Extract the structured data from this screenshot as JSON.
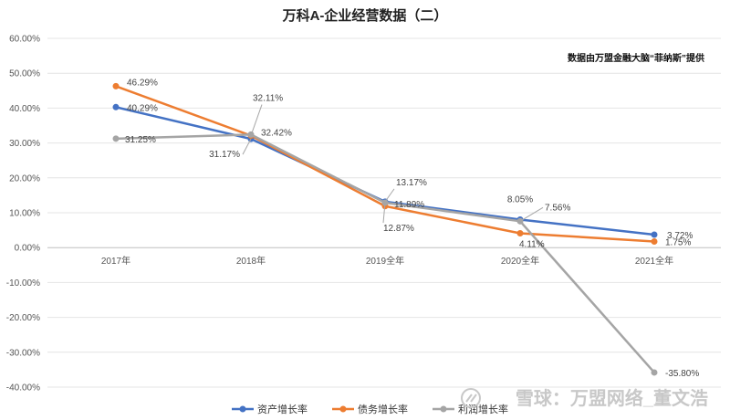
{
  "chart_data": {
    "type": "line",
    "title": "万科A-企业经营数据（二）",
    "source_note": "数据由万盟金融大脑“菲纳斯”提供",
    "categories": [
      "2017年",
      "2018年",
      "2019全年",
      "2020全年",
      "2021全年"
    ],
    "ylim": [
      -40,
      60
    ],
    "ytick_values": [
      60,
      50,
      40,
      30,
      20,
      10,
      0,
      -10,
      -20,
      -30,
      -40
    ],
    "yticks": [
      "60.00%",
      "50.00%",
      "40.00%",
      "30.00%",
      "20.00%",
      "10.00%",
      "0.00%",
      "-10.00%",
      "-20.00%",
      "-30.00%",
      "-40.00%"
    ],
    "grid": true,
    "legend_position": "bottom",
    "series": [
      {
        "name": "资产增长率",
        "color": "#4472C4",
        "values": [
          40.29,
          31.17,
          13.17,
          8.05,
          3.72
        ],
        "labels": [
          "40.29%",
          "31.17%",
          "13.17%",
          "8.05%",
          "3.72%"
        ]
      },
      {
        "name": "债务增长率",
        "color": "#ED7D31",
        "values": [
          46.29,
          32.11,
          11.89,
          4.11,
          1.75
        ],
        "labels": [
          "46.29%",
          "32.11%",
          "11.89%",
          "4.11%",
          "1.75%"
        ]
      },
      {
        "name": "利润增长率",
        "color": "#A5A5A5",
        "values": [
          31.25,
          32.42,
          12.87,
          7.56,
          -35.8
        ],
        "labels": [
          "31.25%",
          "32.42%",
          "12.87%",
          "7.56%",
          "-35.80%"
        ]
      }
    ]
  },
  "watermark": "雪球：万盟网络_董文浩"
}
